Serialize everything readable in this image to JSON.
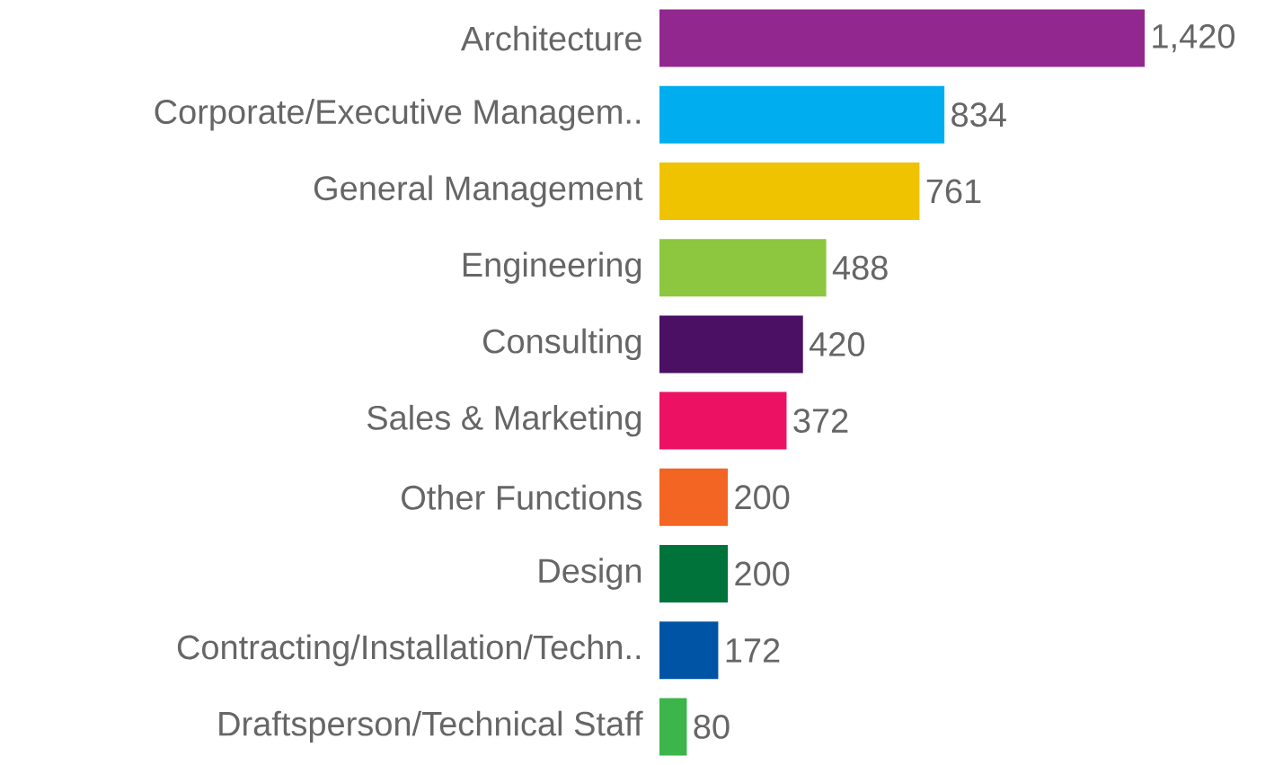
{
  "chart_data": {
    "type": "bar",
    "orientation": "horizontal",
    "categories": [
      "Architecture",
      "Corporate/Executive Managem..",
      "General Management",
      "Engineering",
      "Consulting",
      "Sales & Marketing",
      "Other Functions",
      "Design",
      "Contracting/Installation/Techn..",
      "Draftsperson/Technical Staff"
    ],
    "values": [
      1420,
      834,
      761,
      488,
      420,
      372,
      200,
      200,
      172,
      80
    ],
    "colors": [
      "#92278f",
      "#00aeef",
      "#f0c300",
      "#8dc63f",
      "#4b0f63",
      "#ed1164",
      "#f26522",
      "#00733a",
      "#0054a6",
      "#3cb54a"
    ],
    "value_labels": [
      "1,420",
      "834",
      "761",
      "488",
      "420",
      "372",
      "200",
      "200",
      "172",
      "80"
    ]
  }
}
